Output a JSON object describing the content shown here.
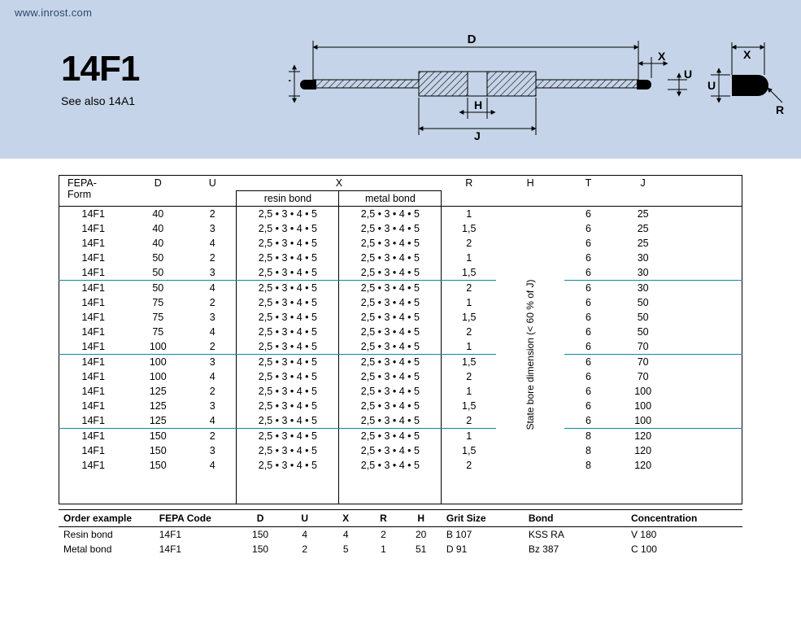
{
  "url": "www.inrost.com",
  "title": "14F1",
  "subtitle": "See also 14A1",
  "diagram": {
    "labels": {
      "D": "D",
      "X": "X",
      "U": "U",
      "T": "T",
      "H": "H",
      "J": "J",
      "R": "R"
    },
    "stroke": "#000000",
    "hatch": "#3a3a3a",
    "arrow": "#000000",
    "accent": "#0d8a9a"
  },
  "table": {
    "headers": {
      "fepa": "FEPA-\nForm",
      "D": "D",
      "U": "U",
      "X": "X",
      "R": "R",
      "H": "H",
      "T": "T",
      "J": "J"
    },
    "x_sub": {
      "resin": "resin bond",
      "metal": "metal bond"
    },
    "x_value": "2,5 • 3 • 4 • 5",
    "h_note": "State bore dimension (< 60 % of J)",
    "groups": [
      [
        {
          "fepa": "14F1",
          "D": "40",
          "U": "2",
          "R": "1",
          "T": "6",
          "J": "25"
        },
        {
          "fepa": "14F1",
          "D": "40",
          "U": "3",
          "R": "1,5",
          "T": "6",
          "J": "25"
        },
        {
          "fepa": "14F1",
          "D": "40",
          "U": "4",
          "R": "2",
          "T": "6",
          "J": "25"
        },
        {
          "fepa": "14F1",
          "D": "50",
          "U": "2",
          "R": "1",
          "T": "6",
          "J": "30"
        },
        {
          "fepa": "14F1",
          "D": "50",
          "U": "3",
          "R": "1,5",
          "T": "6",
          "J": "30"
        }
      ],
      [
        {
          "fepa": "14F1",
          "D": "50",
          "U": "4",
          "R": "2",
          "T": "6",
          "J": "30"
        },
        {
          "fepa": "14F1",
          "D": "75",
          "U": "2",
          "R": "1",
          "T": "6",
          "J": "50"
        },
        {
          "fepa": "14F1",
          "D": "75",
          "U": "3",
          "R": "1,5",
          "T": "6",
          "J": "50"
        },
        {
          "fepa": "14F1",
          "D": "75",
          "U": "4",
          "R": "2",
          "T": "6",
          "J": "50"
        },
        {
          "fepa": "14F1",
          "D": "100",
          "U": "2",
          "R": "1",
          "T": "6",
          "J": "70"
        }
      ],
      [
        {
          "fepa": "14F1",
          "D": "100",
          "U": "3",
          "R": "1,5",
          "T": "6",
          "J": "70"
        },
        {
          "fepa": "14F1",
          "D": "100",
          "U": "4",
          "R": "2",
          "T": "6",
          "J": "70"
        },
        {
          "fepa": "14F1",
          "D": "125",
          "U": "2",
          "R": "1",
          "T": "6",
          "J": "100"
        },
        {
          "fepa": "14F1",
          "D": "125",
          "U": "3",
          "R": "1,5",
          "T": "6",
          "J": "100"
        },
        {
          "fepa": "14F1",
          "D": "125",
          "U": "4",
          "R": "2",
          "T": "6",
          "J": "100"
        }
      ],
      [
        {
          "fepa": "14F1",
          "D": "150",
          "U": "2",
          "R": "1",
          "T": "8",
          "J": "120"
        },
        {
          "fepa": "14F1",
          "D": "150",
          "U": "3",
          "R": "1,5",
          "T": "8",
          "J": "120"
        },
        {
          "fepa": "14F1",
          "D": "150",
          "U": "4",
          "R": "2",
          "T": "8",
          "J": "120"
        }
      ]
    ]
  },
  "order": {
    "headers": [
      "Order example",
      "FEPA Code",
      "D",
      "U",
      "X",
      "R",
      "H",
      "Grit Size",
      "Bond",
      "Concentration"
    ],
    "rows": [
      {
        "label": "Resin bond",
        "fepa": "14F1",
        "D": "150",
        "U": "4",
        "X": "4",
        "R": "2",
        "H": "20",
        "grit": "B 107",
        "bond": "KSS RA",
        "conc": "V 180"
      },
      {
        "label": "Metal bond",
        "fepa": "14F1",
        "D": "150",
        "U": "2",
        "X": "5",
        "R": "1",
        "H": "51",
        "grit": "D 91",
        "bond": "Bz 387",
        "conc": "C 100"
      }
    ]
  }
}
